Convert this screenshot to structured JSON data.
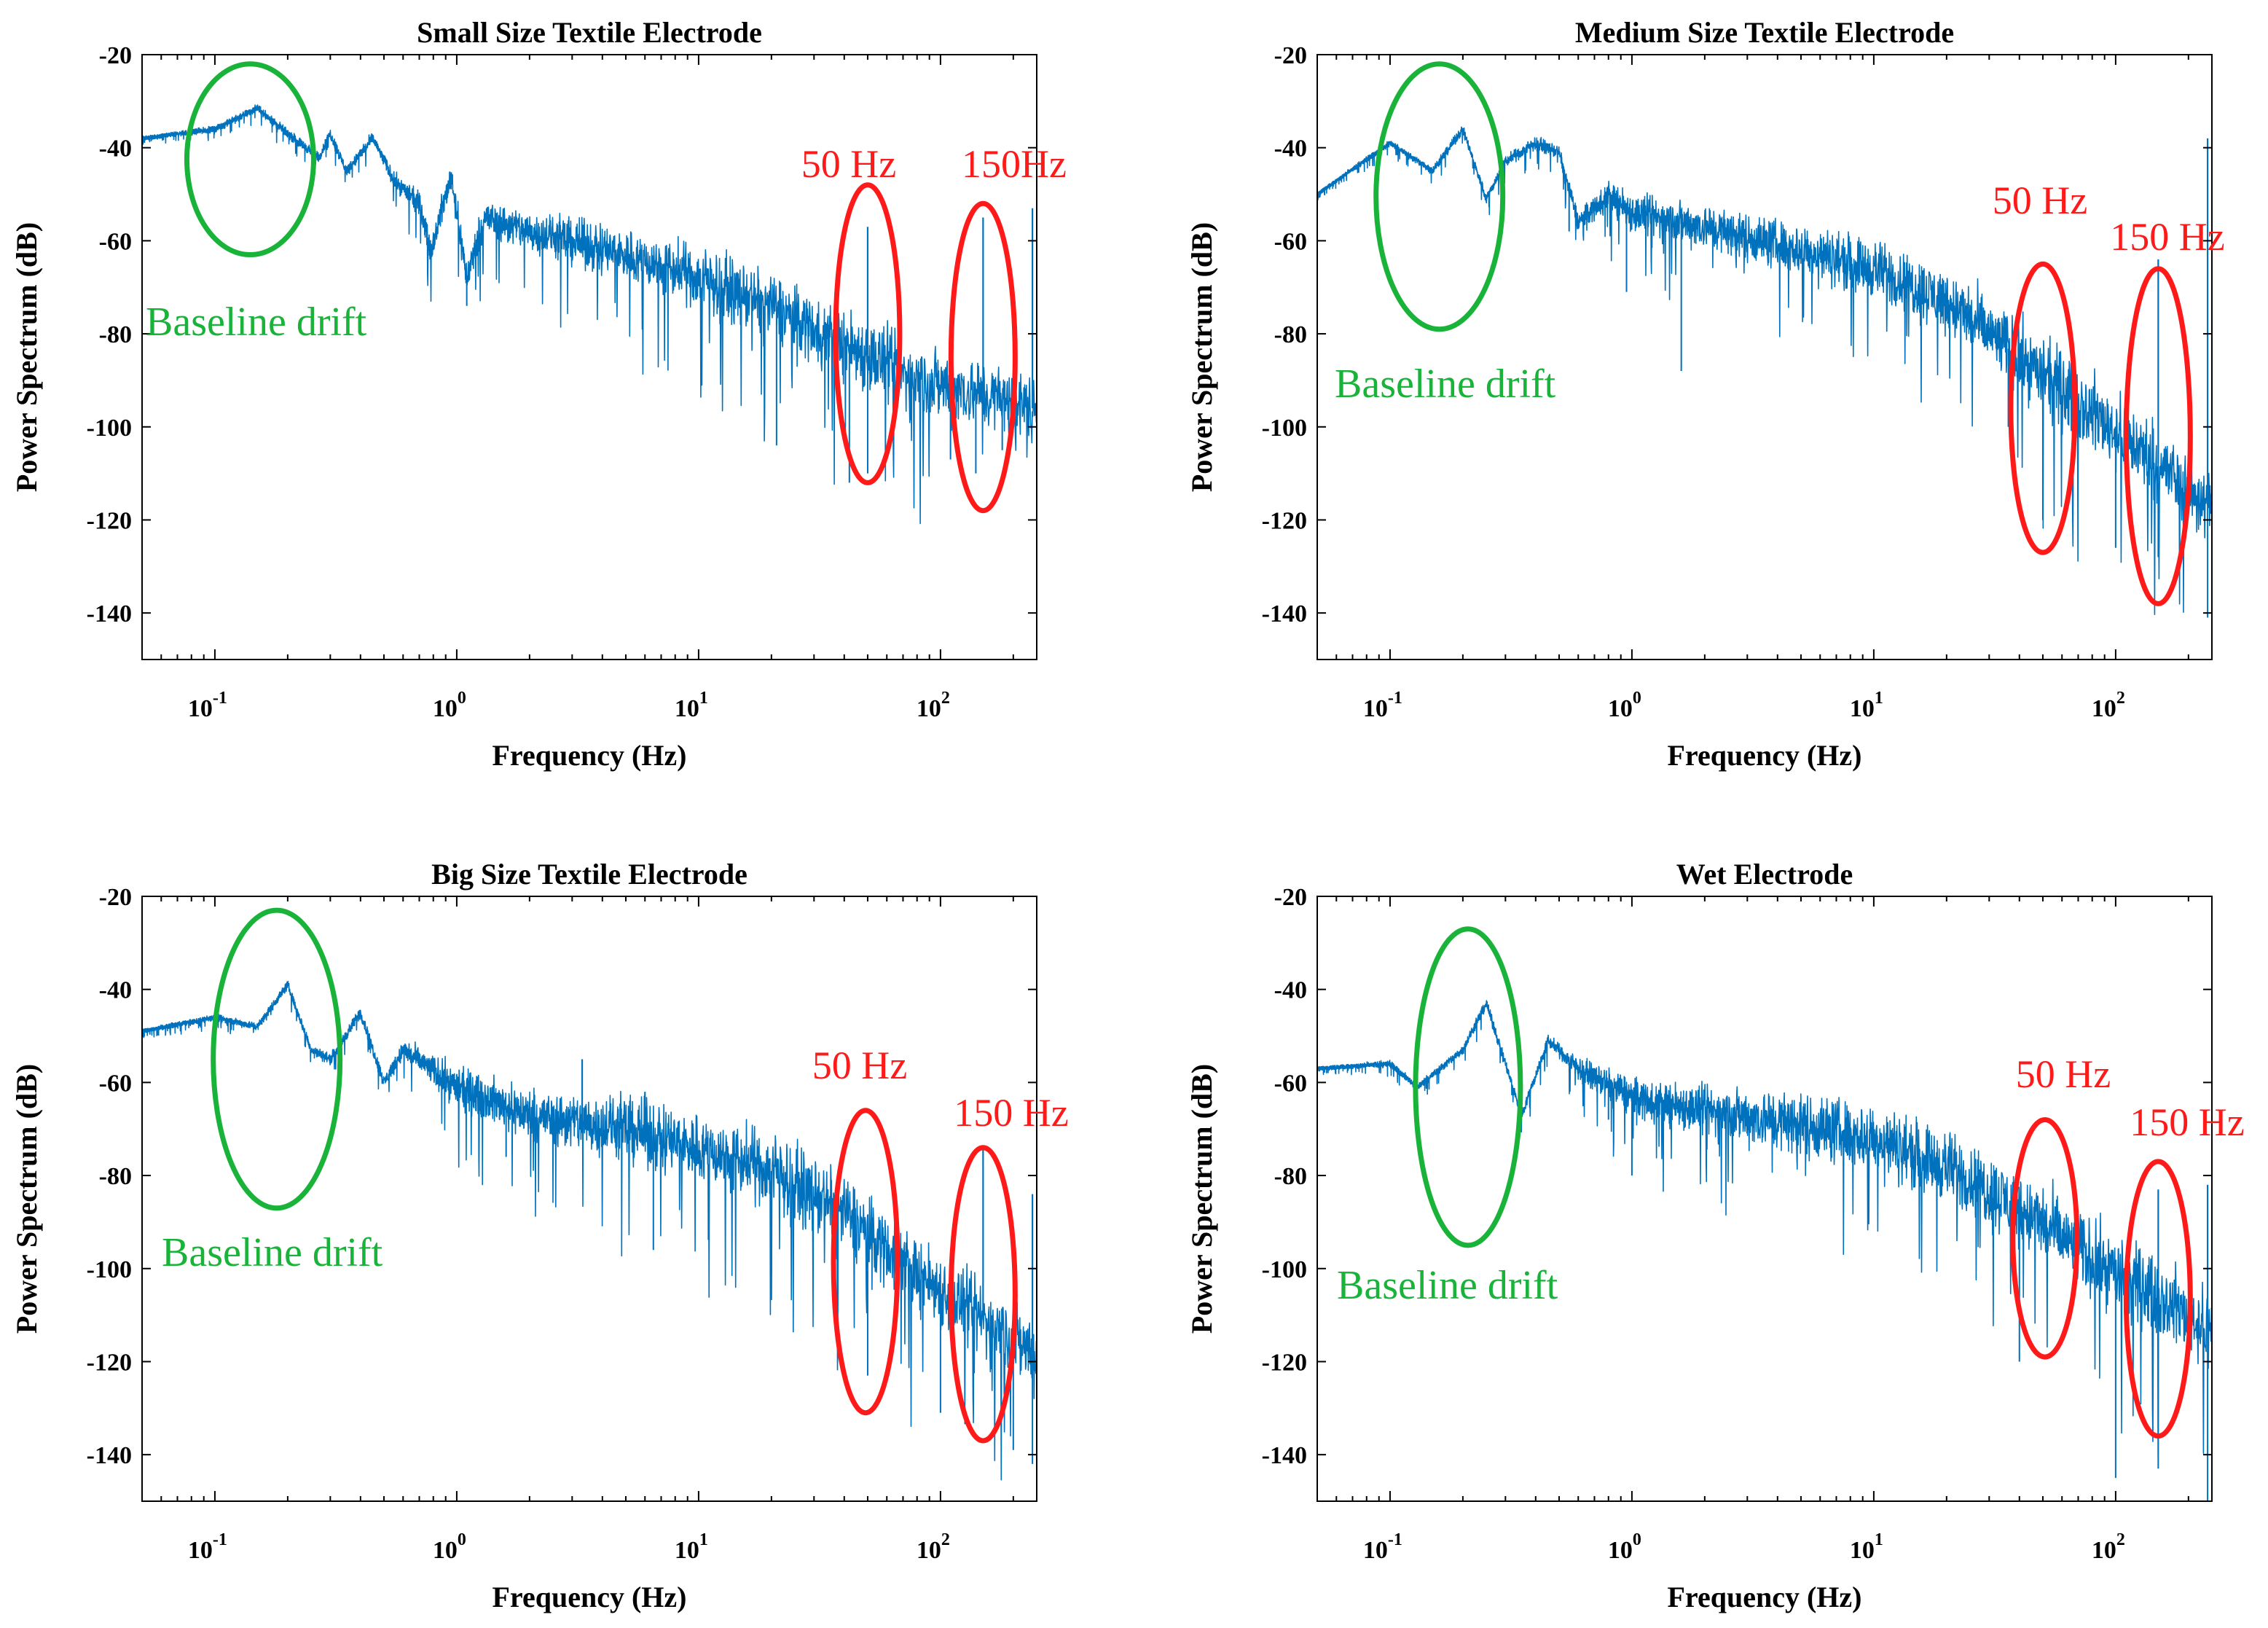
{
  "figure": {
    "colors": {
      "series": "#0072bd",
      "frame": "#000000",
      "red": "#ff1a1a",
      "green": "#19b33a"
    }
  },
  "chart_data": [
    {
      "type": "line",
      "title": "Small Size Textile Electrode",
      "xlabel": "Frequency (Hz)",
      "ylabel": "Power Spectrum (dB)",
      "xscale": "log",
      "xlim": [
        0.05,
        250
      ],
      "ylim": [
        -150,
        -20
      ],
      "yticks": [
        -20,
        -40,
        -60,
        -80,
        -100,
        -120,
        -140
      ],
      "xticks": [
        0.1,
        1,
        10,
        100
      ],
      "xtick_labels": [
        {
          "base": "10",
          "exp": "-1"
        },
        {
          "base": "10",
          "exp": "0"
        },
        {
          "base": "10",
          "exp": "1"
        },
        {
          "base": "10",
          "exp": "2"
        }
      ],
      "series": [
        {
          "name": "spectrum",
          "anchors": [
            [
              0.05,
              -38
            ],
            [
              0.1,
              -36
            ],
            [
              0.15,
              -31.5
            ],
            [
              0.2,
              -37
            ],
            [
              0.27,
              -42
            ],
            [
              0.3,
              -37
            ],
            [
              0.35,
              -45
            ],
            [
              0.45,
              -38
            ],
            [
              0.55,
              -47
            ],
            [
              0.7,
              -52
            ],
            [
              0.78,
              -62
            ],
            [
              0.95,
              -46
            ],
            [
              1.1,
              -68
            ],
            [
              1.3,
              -55
            ],
            [
              2,
              -58
            ],
            [
              5,
              -63
            ],
            [
              10,
              -68
            ],
            [
              20,
              -74
            ],
            [
              40,
              -82
            ],
            [
              80,
              -90
            ],
            [
              150,
              -93
            ],
            [
              240,
              -96
            ]
          ],
          "spread": [
            [
              0.05,
              0.5
            ],
            [
              0.5,
              2
            ],
            [
              1,
              5
            ],
            [
              5,
              8
            ],
            [
              20,
              10
            ],
            [
              60,
              12
            ],
            [
              240,
              10
            ]
          ],
          "spikes": [
            [
              50,
              -57
            ],
            [
              150,
              -55
            ],
            [
              240,
              -53
            ]
          ],
          "dips": [
            [
              0.8,
              -62
            ],
            [
              1.1,
              -74
            ],
            [
              21,
              -104
            ],
            [
              42,
              -112
            ],
            [
              50,
              -110
            ],
            [
              110,
              -107
            ],
            [
              140,
              -110
            ],
            [
              180,
              -105
            ]
          ]
        }
      ],
      "annotations": {
        "freq50": {
          "label": "50 Hz",
          "freq": 50,
          "ymin": -112,
          "ymax": -48
        },
        "freq150": {
          "label": "150Hz",
          "freq": 150,
          "ymin": -118,
          "ymax": -52
        },
        "baseline": {
          "label": "Baseline drift",
          "freq": 0.14,
          "ymin": -63,
          "ymax": -22
        }
      }
    },
    {
      "type": "line",
      "title": "Medium Size Textile Electrode",
      "xlabel": "Frequency (Hz)",
      "ylabel": "Power Spectrum (dB)",
      "xscale": "log",
      "xlim": [
        0.05,
        250
      ],
      "ylim": [
        -150,
        -20
      ],
      "yticks": [
        -20,
        -40,
        -60,
        -80,
        -100,
        -120,
        -140
      ],
      "xticks": [
        0.1,
        1,
        10,
        100
      ],
      "xtick_labels": [
        {
          "base": "10",
          "exp": "-1"
        },
        {
          "base": "10",
          "exp": "0"
        },
        {
          "base": "10",
          "exp": "1"
        },
        {
          "base": "10",
          "exp": "2"
        }
      ],
      "series": [
        {
          "name": "spectrum",
          "anchors": [
            [
              0.05,
              -50
            ],
            [
              0.1,
              -39
            ],
            [
              0.15,
              -45
            ],
            [
              0.2,
              -36
            ],
            [
              0.25,
              -51
            ],
            [
              0.3,
              -43
            ],
            [
              0.4,
              -39
            ],
            [
              0.5,
              -41
            ],
            [
              0.6,
              -56
            ],
            [
              0.8,
              -50
            ],
            [
              1,
              -54
            ],
            [
              2,
              -57
            ],
            [
              5,
              -62
            ],
            [
              10,
              -66
            ],
            [
              20,
              -73
            ],
            [
              40,
              -85
            ],
            [
              80,
              -97
            ],
            [
              150,
              -108
            ],
            [
              240,
              -117
            ]
          ],
          "spread": [
            [
              0.05,
              0.5
            ],
            [
              0.5,
              2
            ],
            [
              1,
              6
            ],
            [
              5,
              8
            ],
            [
              20,
              10
            ],
            [
              60,
              12
            ],
            [
              240,
              12
            ]
          ],
          "spikes": [
            [
              150,
              -64
            ],
            [
              240,
              -38
            ]
          ],
          "dips": [
            [
              0.55,
              -58
            ],
            [
              0.95,
              -71
            ],
            [
              1.6,
              -88
            ],
            [
              36,
              -100
            ],
            [
              50,
              -120
            ],
            [
              100,
              -126
            ],
            [
              150,
              -128
            ],
            [
              240,
              -141
            ]
          ]
        }
      ],
      "annotations": {
        "freq50": {
          "label": "50 Hz",
          "freq": 50,
          "ymin": -127,
          "ymax": -65
        },
        "freq150": {
          "label": "150 Hz",
          "freq": 150,
          "ymin": -138,
          "ymax": -66
        },
        "baseline": {
          "label": "Baseline drift",
          "freq": 0.16,
          "ymin": -79,
          "ymax": -22
        }
      }
    },
    {
      "type": "line",
      "title": "Big Size Textile Electrode",
      "xlabel": "Frequency (Hz)",
      "ylabel": "Power Spectrum (dB)",
      "xscale": "log",
      "xlim": [
        0.05,
        250
      ],
      "ylim": [
        -150,
        -20
      ],
      "yticks": [
        -20,
        -40,
        -60,
        -80,
        -100,
        -120,
        -140
      ],
      "xticks": [
        0.1,
        1,
        10,
        100
      ],
      "xtick_labels": [
        {
          "base": "10",
          "exp": "-1"
        },
        {
          "base": "10",
          "exp": "0"
        },
        {
          "base": "10",
          "exp": "1"
        },
        {
          "base": "10",
          "exp": "2"
        }
      ],
      "series": [
        {
          "name": "spectrum",
          "anchors": [
            [
              0.05,
              -49
            ],
            [
              0.1,
              -46
            ],
            [
              0.15,
              -48
            ],
            [
              0.2,
              -39
            ],
            [
              0.25,
              -53
            ],
            [
              0.3,
              -55
            ],
            [
              0.4,
              -45
            ],
            [
              0.5,
              -60
            ],
            [
              0.6,
              -53
            ],
            [
              1,
              -61
            ],
            [
              2,
              -67
            ],
            [
              5,
              -70
            ],
            [
              10,
              -74
            ],
            [
              20,
              -79
            ],
            [
              40,
              -88
            ],
            [
              80,
              -101
            ],
            [
              150,
              -111
            ],
            [
              240,
              -118
            ]
          ],
          "spread": [
            [
              0.05,
              0.5
            ],
            [
              0.5,
              2
            ],
            [
              1,
              6
            ],
            [
              5,
              10
            ],
            [
              20,
              11
            ],
            [
              60,
              12
            ],
            [
              240,
              12
            ]
          ],
          "spikes": [
            [
              3.3,
              -55
            ],
            [
              6,
              -62
            ],
            [
              150,
              -74
            ],
            [
              240,
              -84
            ]
          ],
          "dips": [
            [
              1.6,
              -76
            ],
            [
              6.5,
              -96
            ],
            [
              20,
              -101
            ],
            [
              50,
              -123
            ],
            [
              100,
              -131
            ],
            [
              200,
              -139
            ],
            [
              240,
              -142
            ]
          ]
        }
      ],
      "annotations": {
        "freq50": {
          "label": "50 Hz",
          "freq": 49,
          "ymin": -131,
          "ymax": -66
        },
        "freq150": {
          "label": "150 Hz",
          "freq": 150,
          "ymin": -137,
          "ymax": -74
        },
        "baseline": {
          "label": "Baseline drift",
          "freq": 0.18,
          "ymin": -87,
          "ymax": -23
        }
      }
    },
    {
      "type": "line",
      "title": "Wet Electrode",
      "xlabel": "Frequency (Hz)",
      "ylabel": "Power Spectrum (dB)",
      "xscale": "log",
      "xlim": [
        0.05,
        250
      ],
      "ylim": [
        -150,
        -20
      ],
      "yticks": [
        -20,
        -40,
        -60,
        -80,
        -100,
        -120,
        -140
      ],
      "xticks": [
        0.1,
        1,
        10,
        100
      ],
      "xtick_labels": [
        {
          "base": "10",
          "exp": "-1"
        },
        {
          "base": "10",
          "exp": "0"
        },
        {
          "base": "10",
          "exp": "1"
        },
        {
          "base": "10",
          "exp": "2"
        }
      ],
      "series": [
        {
          "name": "spectrum",
          "anchors": [
            [
              0.05,
              -57
            ],
            [
              0.1,
              -56
            ],
            [
              0.13,
              -61
            ],
            [
              0.2,
              -53
            ],
            [
              0.25,
              -43
            ],
            [
              0.35,
              -67
            ],
            [
              0.45,
              -51
            ],
            [
              0.6,
              -57
            ],
            [
              1,
              -63
            ],
            [
              2,
              -66
            ],
            [
              5,
              -69
            ],
            [
              10,
              -72
            ],
            [
              20,
              -78
            ],
            [
              40,
              -87
            ],
            [
              80,
              -98
            ],
            [
              150,
              -106
            ],
            [
              240,
              -113
            ]
          ],
          "spread": [
            [
              0.05,
              0.5
            ],
            [
              0.5,
              2
            ],
            [
              1,
              6
            ],
            [
              5,
              10
            ],
            [
              20,
              11
            ],
            [
              60,
              12
            ],
            [
              240,
              12
            ]
          ],
          "spikes": [
            [
              150,
              -83
            ],
            [
              240,
              -82
            ]
          ],
          "dips": [
            [
              0.8,
              -68
            ],
            [
              1,
              -80
            ],
            [
              40,
              -120
            ],
            [
              100,
              -145
            ],
            [
              150,
              -143
            ],
            [
              240,
              -150
            ]
          ]
        }
      ],
      "annotations": {
        "freq50": {
          "label": "50 Hz",
          "freq": 51,
          "ymin": -119,
          "ymax": -68
        },
        "freq150": {
          "label": "150 Hz",
          "freq": 150,
          "ymin": -136,
          "ymax": -77
        },
        "baseline": {
          "label": "Baseline drift",
          "freq": 0.21,
          "ymin": -95,
          "ymax": -27
        }
      }
    }
  ]
}
